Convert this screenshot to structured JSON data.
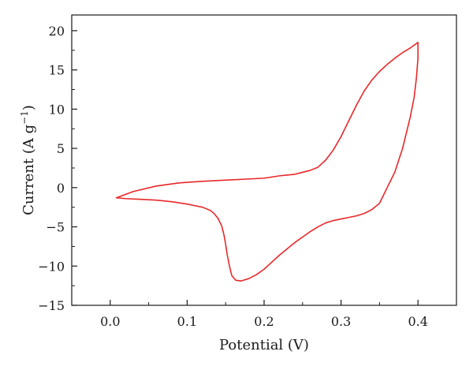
{
  "chart_data": {
    "type": "line",
    "xlabel": "Potential (V)",
    "ylabel": "Current (A g",
    "ylabel_superscript": "−1",
    "ylabel_close": ")",
    "xlim": [
      -0.05,
      0.45
    ],
    "ylim": [
      -15,
      22
    ],
    "xticks": [
      0.0,
      0.1,
      0.2,
      0.3,
      0.4
    ],
    "xtick_labels": [
      "0.0",
      "0.1",
      "0.2",
      "0.3",
      "0.4"
    ],
    "yticks": [
      -15,
      -10,
      -5,
      0,
      5,
      10,
      15,
      20
    ],
    "ytick_labels": [
      "−15",
      "−10",
      "−5",
      "0",
      "5",
      "10",
      "15",
      "20"
    ],
    "grid": false,
    "series": [
      {
        "color": "#e8282a",
        "x": [
          0.008,
          0.03,
          0.06,
          0.09,
          0.12,
          0.15,
          0.18,
          0.2,
          0.22,
          0.24,
          0.26,
          0.27,
          0.28,
          0.29,
          0.3,
          0.31,
          0.32,
          0.33,
          0.34,
          0.35,
          0.36,
          0.37,
          0.38,
          0.39,
          0.4,
          0.4,
          0.398,
          0.395,
          0.39,
          0.385,
          0.38,
          0.375,
          0.37,
          0.365,
          0.36,
          0.355,
          0.35,
          0.34,
          0.33,
          0.32,
          0.31,
          0.3,
          0.29,
          0.28,
          0.27,
          0.26,
          0.25,
          0.24,
          0.23,
          0.22,
          0.21,
          0.2,
          0.19,
          0.18,
          0.17,
          0.163,
          0.158,
          0.155,
          0.152,
          0.15,
          0.148,
          0.145,
          0.14,
          0.135,
          0.13,
          0.12,
          0.1,
          0.08,
          0.06,
          0.04,
          0.02,
          0.008
        ],
        "y": [
          -1.3,
          -0.5,
          0.2,
          0.6,
          0.8,
          0.95,
          1.1,
          1.2,
          1.5,
          1.7,
          2.2,
          2.6,
          3.5,
          4.8,
          6.5,
          8.5,
          10.5,
          12.3,
          13.7,
          14.8,
          15.7,
          16.5,
          17.2,
          17.8,
          18.5,
          16.5,
          14.0,
          11.5,
          9.0,
          7.0,
          5.0,
          3.5,
          2.0,
          1.0,
          0.0,
          -1.0,
          -2.0,
          -2.8,
          -3.3,
          -3.6,
          -3.8,
          -4.0,
          -4.2,
          -4.5,
          -5.0,
          -5.6,
          -6.3,
          -7.0,
          -7.8,
          -8.6,
          -9.5,
          -10.4,
          -11.1,
          -11.6,
          -11.9,
          -11.8,
          -11.2,
          -10.0,
          -8.5,
          -7.2,
          -6.1,
          -4.9,
          -3.9,
          -3.3,
          -2.9,
          -2.5,
          -2.1,
          -1.8,
          -1.6,
          -1.5,
          -1.4,
          -1.3
        ]
      }
    ]
  }
}
